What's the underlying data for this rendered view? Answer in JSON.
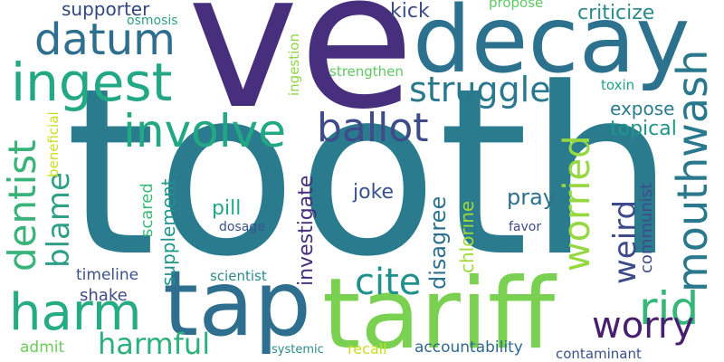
{
  "words": [
    {
      "id": "tooth",
      "text": "tooth",
      "color": "#2a7b8e"
    },
    {
      "id": "ve",
      "text": "ve",
      "color": "#472f7d"
    },
    {
      "id": "tap",
      "text": "tap",
      "color": "#2e6e8e"
    },
    {
      "id": "tariff",
      "text": "tariff",
      "color": "#7ad151"
    },
    {
      "id": "decay",
      "text": "decay",
      "color": "#2c728e"
    },
    {
      "id": "ingest",
      "text": "ingest",
      "color": "#22a884"
    },
    {
      "id": "datum",
      "text": "datum",
      "color": "#2e6e8e"
    },
    {
      "id": "involve",
      "text": "involve",
      "color": "#22a884"
    },
    {
      "id": "ballot",
      "text": "ballot",
      "color": "#3e4c8a"
    },
    {
      "id": "harm",
      "text": "harm",
      "color": "#25ac82"
    },
    {
      "id": "struggle",
      "text": "struggle",
      "color": "#2a788e"
    },
    {
      "id": "mouthwash",
      "text": "mouthwash",
      "color": "#2a788e"
    },
    {
      "id": "worried",
      "text": "worried",
      "color": "#95d840"
    },
    {
      "id": "dentist",
      "text": "dentist",
      "color": "#3ab37a"
    },
    {
      "id": "blame",
      "text": "blame",
      "color": "#2f9f87"
    },
    {
      "id": "weird",
      "text": "weird",
      "color": "#3e4a89"
    },
    {
      "id": "rid",
      "text": "rid",
      "color": "#35b779"
    },
    {
      "id": "worry",
      "text": "worry",
      "color": "#471f6e"
    },
    {
      "id": "cite",
      "text": "cite",
      "color": "#21908d"
    },
    {
      "id": "harmful",
      "text": "harmful",
      "color": "#2cb17e"
    },
    {
      "id": "supporter",
      "text": "supporter",
      "color": "#31467f"
    },
    {
      "id": "kick",
      "text": "kick",
      "color": "#3e4a89"
    },
    {
      "id": "criticize",
      "text": "criticize",
      "color": "#2c8a8c"
    },
    {
      "id": "osmosis",
      "text": "osmosis",
      "color": "#2f9f87"
    },
    {
      "id": "propose",
      "text": "propose",
      "color": "#5ec962"
    },
    {
      "id": "strengthen",
      "text": "strengthen",
      "color": "#5ec962"
    },
    {
      "id": "ingestion",
      "text": "ingestion",
      "color": "#8fd744"
    },
    {
      "id": "beneficial",
      "text": "beneficial",
      "color": "#c8e020"
    },
    {
      "id": "toxin",
      "text": "toxin",
      "color": "#21a386"
    },
    {
      "id": "expose",
      "text": "expose",
      "color": "#2a7b8e"
    },
    {
      "id": "topical",
      "text": "topical",
      "color": "#1f968b"
    },
    {
      "id": "supplement",
      "text": "supplement",
      "color": "#1f968b"
    },
    {
      "id": "investigate",
      "text": "investigate",
      "color": "#472f7d"
    },
    {
      "id": "scared",
      "text": "scared",
      "color": "#3aba76"
    },
    {
      "id": "pill",
      "text": "pill",
      "color": "#22a884"
    },
    {
      "id": "joke",
      "text": "joke",
      "color": "#3b518b"
    },
    {
      "id": "disagree",
      "text": "disagree",
      "color": "#2d718e"
    },
    {
      "id": "chlorine",
      "text": "chlorine",
      "color": "#a0da39"
    },
    {
      "id": "pray",
      "text": "pray",
      "color": "#2d708e"
    },
    {
      "id": "communist",
      "text": "communist",
      "color": "#3e4a89"
    },
    {
      "id": "dosage",
      "text": "dosage",
      "color": "#3b528b"
    },
    {
      "id": "favor",
      "text": "favor",
      "color": "#3e4a89"
    },
    {
      "id": "timeline",
      "text": "timeline",
      "color": "#3b528b"
    },
    {
      "id": "scientist",
      "text": "scientist",
      "color": "#2c8a8c"
    },
    {
      "id": "shake",
      "text": "shake",
      "color": "#3e4a89"
    },
    {
      "id": "admit",
      "text": "admit",
      "color": "#6ccd5a"
    },
    {
      "id": "systemic",
      "text": "systemic",
      "color": "#2c8a8c"
    },
    {
      "id": "recall",
      "text": "recall",
      "color": "#c8e020"
    },
    {
      "id": "accountability",
      "text": "accountability",
      "color": "#31688e"
    },
    {
      "id": "contaminant",
      "text": "contaminant",
      "color": "#3b518b"
    }
  ]
}
